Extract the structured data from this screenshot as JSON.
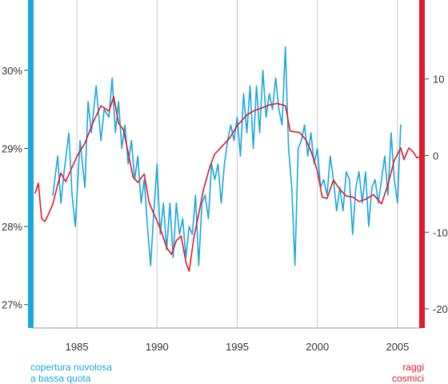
{
  "chart_data": {
    "type": "line",
    "x_range": [
      1982.2,
      2006.5
    ],
    "x_ticks": [
      {
        "value": 1985,
        "label": "1985"
      },
      {
        "value": 1990,
        "label": "1990"
      },
      {
        "value": 1995,
        "label": "1995"
      },
      {
        "value": 2000,
        "label": "2000"
      },
      {
        "value": 2005,
        "label": "2005"
      }
    ],
    "left_axis": {
      "ylim": [
        26.7,
        30.9
      ],
      "ticks": [
        {
          "value": 30,
          "label": "30%"
        },
        {
          "value": 29,
          "label": "29%"
        },
        {
          "value": 28,
          "label": "28%"
        },
        {
          "value": 27,
          "label": "27%"
        }
      ],
      "color": "#1aa7dd"
    },
    "right_axis": {
      "ylim": [
        -22.5,
        20.3
      ],
      "ticks": [
        {
          "value": 10,
          "label": "10"
        },
        {
          "value": 0,
          "label": "0"
        },
        {
          "value": -10,
          "label": "-10"
        },
        {
          "value": -20,
          "label": "-20"
        }
      ],
      "color": "#e01b2a"
    },
    "grid": "vertical",
    "series": [
      {
        "name": "copertura nuvolosa a bassa quota",
        "axis": "left",
        "color": "#1aa7dd",
        "x": [
          1983.5,
          1983.8,
          1984.0,
          1984.2,
          1984.5,
          1984.7,
          1984.9,
          1985.2,
          1985.5,
          1985.7,
          1985.9,
          1986.2,
          1986.5,
          1986.7,
          1987.0,
          1987.2,
          1987.4,
          1987.6,
          1987.8,
          1988.0,
          1988.2,
          1988.4,
          1988.6,
          1988.8,
          1989.0,
          1989.2,
          1989.4,
          1989.6,
          1989.8,
          1990.0,
          1990.2,
          1990.4,
          1990.6,
          1990.8,
          1991.0,
          1991.2,
          1991.4,
          1991.6,
          1991.8,
          1992.0,
          1992.2,
          1992.4,
          1992.6,
          1992.8,
          1993.0,
          1993.2,
          1993.4,
          1993.6,
          1993.8,
          1994.0,
          1994.2,
          1994.4,
          1994.6,
          1994.8,
          1995.0,
          1995.2,
          1995.4,
          1995.6,
          1995.8,
          1996.0,
          1996.2,
          1996.4,
          1996.6,
          1996.8,
          1997.0,
          1997.2,
          1997.4,
          1997.6,
          1997.8,
          1998.0,
          1998.2,
          1998.4,
          1998.6,
          1998.8,
          1999.0,
          1999.2,
          1999.4,
          1999.6,
          1999.8,
          2000.0,
          2000.2,
          2000.4,
          2000.6,
          2000.8,
          2001.0,
          2001.2,
          2001.4,
          2001.6,
          2001.8,
          2002.0,
          2002.2,
          2002.4,
          2002.6,
          2002.8,
          2003.0,
          2003.2,
          2003.4,
          2003.6,
          2003.8,
          2004.0,
          2004.2,
          2004.4,
          2004.6,
          2004.8,
          2005.0,
          2005.2
        ],
        "y": [
          28.4,
          28.9,
          28.3,
          28.7,
          29.2,
          28.4,
          28.0,
          29.1,
          28.5,
          29.6,
          29.2,
          29.8,
          29.1,
          29.5,
          29.4,
          29.9,
          29.2,
          29.6,
          29.0,
          29.3,
          28.8,
          29.1,
          28.6,
          28.9,
          28.3,
          28.6,
          28.0,
          27.5,
          28.2,
          28.8,
          27.9,
          28.3,
          27.7,
          28.3,
          27.6,
          28.3,
          27.9,
          28.1,
          27.6,
          28.0,
          27.9,
          28.4,
          27.5,
          28.3,
          28.4,
          28.1,
          28.8,
          28.6,
          28.8,
          28.3,
          28.8,
          29.1,
          29.3,
          29.1,
          29.4,
          28.9,
          29.7,
          29.2,
          29.8,
          29.0,
          29.8,
          29.2,
          30.0,
          29.4,
          29.7,
          29.5,
          29.9,
          29.5,
          29.3,
          30.3,
          29.0,
          28.5,
          27.5,
          29.0,
          29.1,
          29.3,
          28.9,
          29.2,
          28.8,
          29.0,
          28.5,
          28.6,
          28.4,
          28.9,
          28.6,
          28.2,
          28.5,
          28.2,
          28.7,
          28.6,
          27.9,
          28.5,
          28.7,
          28.3,
          28.7,
          28.0,
          28.5,
          28.6,
          28.3,
          28.6,
          28.9,
          28.4,
          29.2,
          28.6,
          28.3,
          29.3
        ]
      },
      {
        "name": "raggi cosmici",
        "axis": "right",
        "color": "#e01b2a",
        "x": [
          1982.4,
          1982.6,
          1982.8,
          1983.0,
          1983.2,
          1983.5,
          1983.8,
          1984.0,
          1984.3,
          1984.6,
          1985.0,
          1985.5,
          1986.0,
          1986.5,
          1987.0,
          1987.3,
          1987.6,
          1987.9,
          1988.2,
          1988.5,
          1988.8,
          1989.2,
          1989.5,
          1989.8,
          1990.0,
          1990.3,
          1990.6,
          1990.9,
          1991.2,
          1991.5,
          1991.8,
          1992.0,
          1992.3,
          1992.6,
          1992.9,
          1993.3,
          1993.6,
          1994.0,
          1994.5,
          1995.0,
          1995.3,
          1995.6,
          1996.0,
          1996.5,
          1997.0,
          1997.5,
          1998.0,
          1998.3,
          1998.6,
          1998.9,
          1999.3,
          1999.6,
          2000.0,
          2000.3,
          2000.6,
          2001.0,
          2001.4,
          2001.8,
          2002.2,
          2002.6,
          2003.0,
          2003.5,
          2004.0,
          2004.4,
          2004.8,
          2005.2,
          2005.4,
          2005.7,
          2006.0,
          2006.2,
          2006.5
        ],
        "y": [
          -4.9,
          -3.6,
          -8.2,
          -8.6,
          -7.8,
          -6.3,
          -3.8,
          -2.3,
          -3.4,
          -2.0,
          -0.1,
          1.6,
          4.3,
          6.5,
          5.8,
          7.7,
          4.2,
          3.4,
          0.4,
          -2.8,
          -3.5,
          -2.4,
          -6.1,
          -7.6,
          -8.5,
          -10.1,
          -12.0,
          -12.9,
          -11.1,
          -10.5,
          -13.9,
          -15.1,
          -10.7,
          -7.6,
          -4.4,
          -1.4,
          0.2,
          1.1,
          2.2,
          3.9,
          4.6,
          5.3,
          5.8,
          6.2,
          6.6,
          6.8,
          6.5,
          3.2,
          3.1,
          3.0,
          2.0,
          0.6,
          -2.0,
          -5.4,
          -5.6,
          -3.2,
          -4.4,
          -5.3,
          -5.4,
          -6.0,
          -5.7,
          -5.1,
          -6.3,
          -3.8,
          -0.6,
          1.0,
          -0.5,
          1.0,
          0.4,
          -0.3,
          -0.1
        ]
      }
    ],
    "legend": {
      "left": [
        "copertura nuvolosa",
        "a bassa quota"
      ],
      "right": [
        "raggi",
        "cosmici"
      ]
    }
  }
}
